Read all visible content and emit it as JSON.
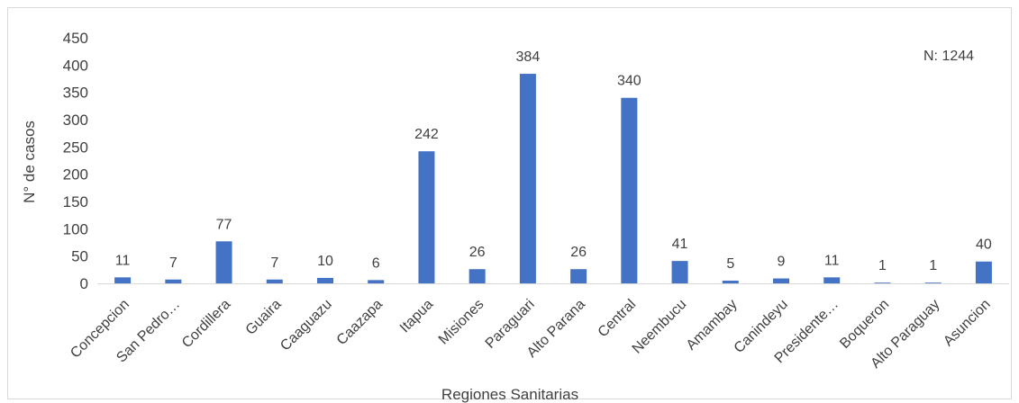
{
  "chart_data": {
    "type": "bar",
    "title": "",
    "xlabel": "Regiones Sanitarias",
    "ylabel": "N° de casos",
    "ylim": [
      0,
      450
    ],
    "yticks": [
      0,
      50,
      100,
      150,
      200,
      250,
      300,
      350,
      400,
      450
    ],
    "grid": false,
    "legend": "none",
    "bar_color": "#4472c4",
    "annotation": "N: 1244",
    "categories": [
      "Concepcion",
      "San Pedro…",
      "Cordillera",
      "Guaira",
      "Caaguazu",
      "Caazapa",
      "Itapua",
      "Misiones",
      "Paraguari",
      "Alto Parana",
      "Central",
      "Neembucu",
      "Amambay",
      "Canindeyu",
      "Presidente…",
      "Boqueron",
      "Alto Paraguay",
      "Asuncion"
    ],
    "values": [
      11,
      7,
      77,
      7,
      10,
      6,
      242,
      26,
      384,
      26,
      340,
      41,
      5,
      9,
      11,
      1,
      1,
      40
    ]
  }
}
